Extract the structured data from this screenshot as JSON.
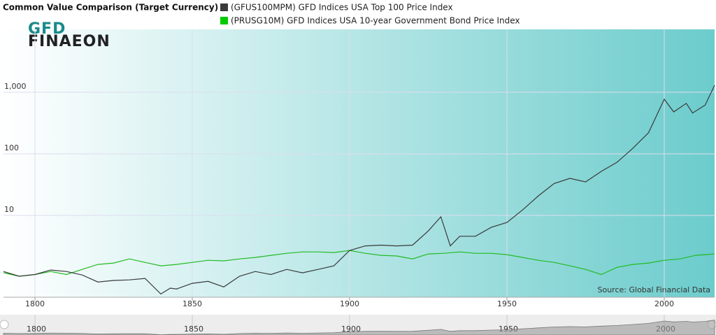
{
  "chart_data": {
    "type": "line",
    "title": "Common Value Comparison (Target Currency)",
    "logo": [
      "GFD",
      "FINAEON"
    ],
    "source": "Source: Global Financial Data",
    "log_y": true,
    "grid": true,
    "xlim": [
      1790,
      2016
    ],
    "xticks": [
      1800,
      1850,
      1900,
      1950,
      2000
    ],
    "ylim": [
      0.47,
      10500
    ],
    "yticks": [
      10,
      100,
      {
        "value": 1000,
        "label": "1,000"
      }
    ],
    "series": [
      {
        "name": "(GFUS100MPM) GFD Indices USA Top 100 Price Index",
        "color": "#3a3a3a",
        "x": [
          1790,
          1795,
          1800,
          1805,
          1810,
          1815,
          1820,
          1825,
          1830,
          1835,
          1840,
          1843,
          1845,
          1850,
          1855,
          1860,
          1865,
          1870,
          1875,
          1880,
          1885,
          1890,
          1895,
          1900,
          1905,
          1910,
          1915,
          1920,
          1925,
          1929,
          1932,
          1935,
          1940,
          1945,
          1950,
          1955,
          1960,
          1965,
          1970,
          1975,
          1980,
          1985,
          1990,
          1995,
          2000,
          2003,
          2007,
          2009,
          2013,
          2016
        ],
        "values": [
          1.23,
          1.03,
          1.1,
          1.3,
          1.23,
          1.08,
          0.83,
          0.88,
          0.9,
          0.95,
          0.53,
          0.66,
          0.64,
          0.79,
          0.85,
          0.69,
          1.03,
          1.23,
          1.1,
          1.33,
          1.17,
          1.33,
          1.52,
          2.7,
          3.2,
          3.3,
          3.2,
          3.3,
          5.6,
          9.5,
          3.2,
          4.6,
          4.6,
          6.4,
          7.7,
          12.3,
          20.8,
          33,
          40,
          35,
          52,
          73,
          123,
          220,
          770,
          480,
          660,
          460,
          620,
          1300
        ]
      },
      {
        "name": "(PRUSG10M) GFD Indices USA 10-year Government Bond Price Index",
        "color": "#22bb22",
        "x": [
          1790,
          1795,
          1800,
          1805,
          1810,
          1815,
          1820,
          1825,
          1830,
          1835,
          1840,
          1845,
          1850,
          1855,
          1860,
          1865,
          1870,
          1875,
          1880,
          1885,
          1890,
          1895,
          1900,
          1905,
          1910,
          1915,
          1920,
          1925,
          1930,
          1935,
          1940,
          1945,
          1950,
          1955,
          1960,
          1965,
          1970,
          1975,
          1980,
          1985,
          1990,
          1995,
          2000,
          2005,
          2010,
          2016
        ],
        "values": [
          1.17,
          1.03,
          1.1,
          1.23,
          1.1,
          1.33,
          1.6,
          1.69,
          1.97,
          1.73,
          1.52,
          1.6,
          1.73,
          1.87,
          1.83,
          1.97,
          2.08,
          2.25,
          2.43,
          2.56,
          2.56,
          2.5,
          2.7,
          2.43,
          2.25,
          2.2,
          1.97,
          2.37,
          2.43,
          2.56,
          2.43,
          2.43,
          2.31,
          2.08,
          1.87,
          1.73,
          1.52,
          1.33,
          1.1,
          1.44,
          1.6,
          1.69,
          1.87,
          1.97,
          2.25,
          2.37
        ]
      }
    ]
  }
}
